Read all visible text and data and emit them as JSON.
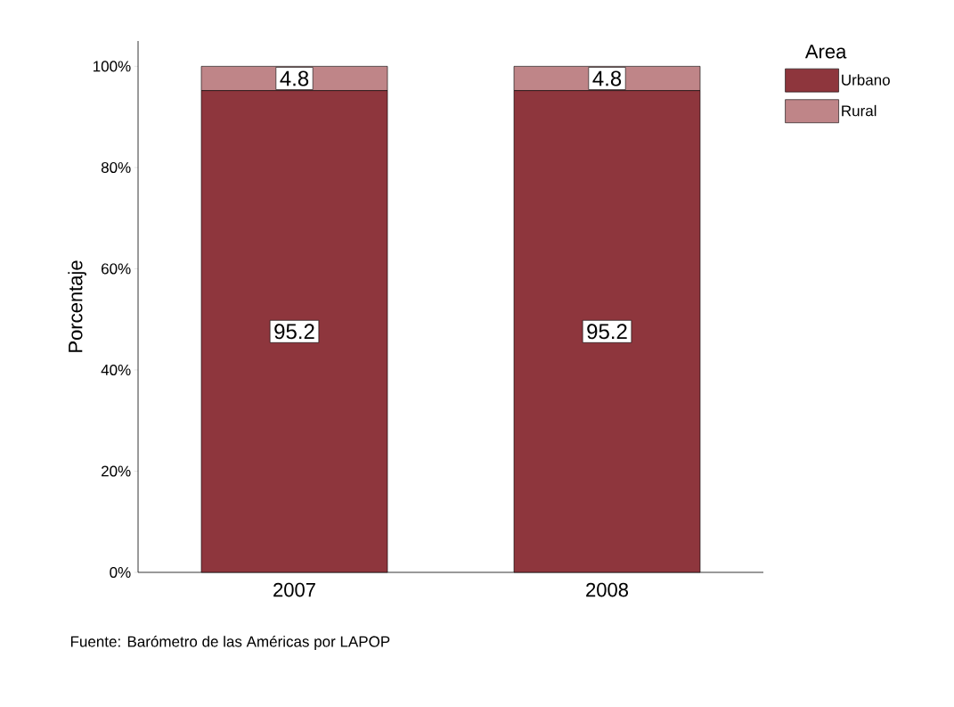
{
  "chart_data": {
    "type": "bar",
    "stacked": true,
    "categories": [
      "2007",
      "2008"
    ],
    "series": [
      {
        "name": "Urbano",
        "color": "#8e363d",
        "values": [
          95.2,
          95.2
        ]
      },
      {
        "name": "Rural",
        "color": "#bf8588",
        "values": [
          4.8,
          4.8
        ]
      }
    ],
    "ylabel": "Porcentaje",
    "legend_title": "Area",
    "legend": "top right",
    "ylim": [
      0,
      105
    ],
    "yticks": [
      {
        "value": 0,
        "label": "0%"
      },
      {
        "value": 20,
        "label": "20%"
      },
      {
        "value": 40,
        "label": "40%"
      },
      {
        "value": 60,
        "label": "60%"
      },
      {
        "value": 80,
        "label": "80%"
      },
      {
        "value": 100,
        "label": "100%"
      }
    ],
    "data_labels": true,
    "annotations": [
      "Fuente: Barómetro de las Américas por LAPOP"
    ]
  }
}
